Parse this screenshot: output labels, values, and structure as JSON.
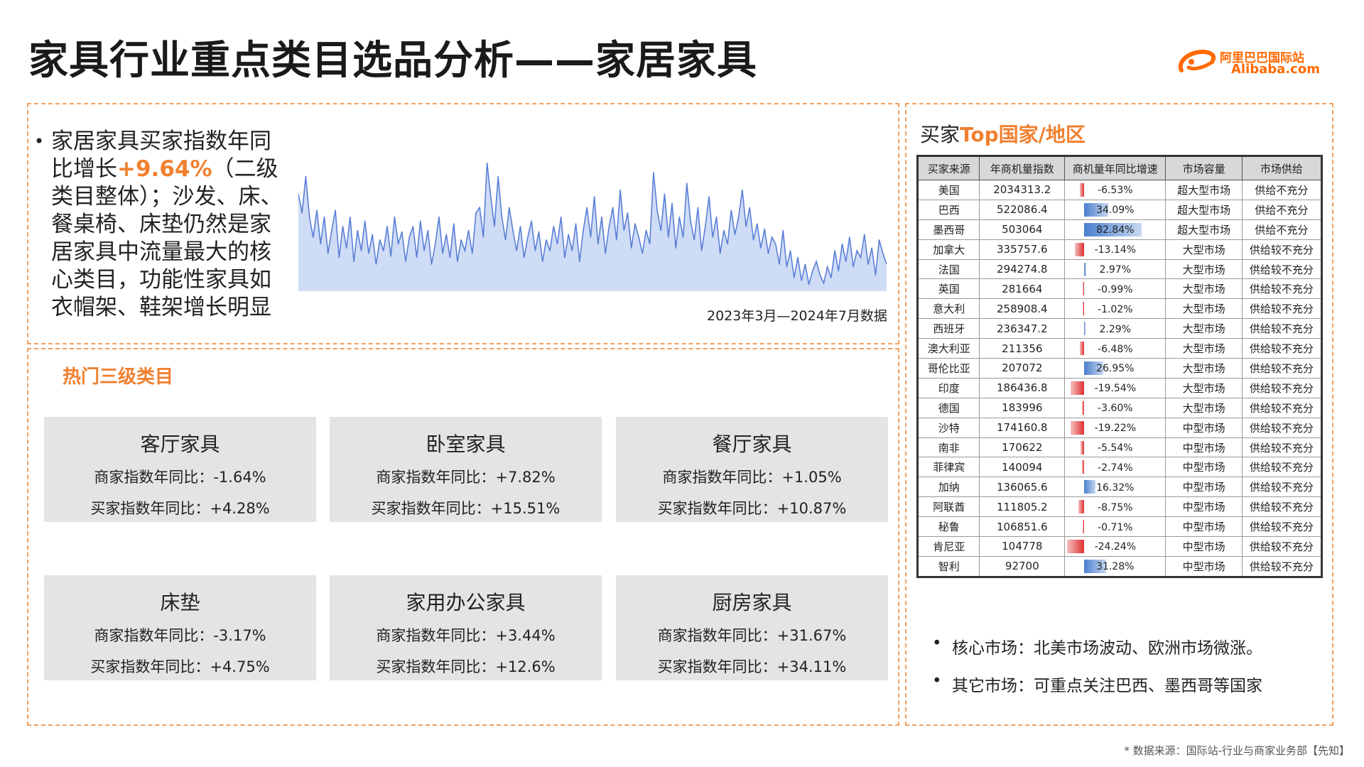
{
  "title": "家具行业重点类目选品分析——家居家具",
  "logo": {
    "cn": "阿里巴巴国际站",
    "en": "Alibaba.com",
    "color": "#ff6a00"
  },
  "trend": {
    "bullet": "•",
    "text_before": "家居家具买家指数年同比增长",
    "highlight": "+9.64%",
    "text_after": "（二级类目整体）；沙发、床、餐桌椅、床垫仍然是家居家具中流量最大的核心类目，功能性家具如衣帽架、鞋架增长明显",
    "caption": "2023年3月—2024年7月数据"
  },
  "chart_data": {
    "type": "area",
    "title": "",
    "xlabel": "",
    "ylabel": "",
    "grid": false,
    "fill_color": "#cfdcf6",
    "line_color": "#5b7fd6",
    "ylim": [
      0,
      100
    ],
    "values": [
      72,
      58,
      85,
      55,
      40,
      60,
      35,
      55,
      28,
      45,
      60,
      25,
      48,
      32,
      55,
      22,
      45,
      30,
      52,
      28,
      42,
      20,
      38,
      30,
      48,
      26,
      55,
      35,
      44,
      22,
      40,
      48,
      25,
      52,
      30,
      45,
      20,
      35,
      55,
      28,
      42,
      25,
      50,
      22,
      38,
      30,
      45,
      28,
      58,
      62,
      40,
      95,
      70,
      48,
      85,
      55,
      38,
      62,
      45,
      30,
      48,
      25,
      40,
      52,
      30,
      44,
      22,
      38,
      30,
      48,
      35,
      55,
      25,
      42,
      30,
      50,
      22,
      45,
      62,
      40,
      70,
      35,
      55,
      28,
      48,
      62,
      38,
      75,
      45,
      58,
      32,
      50,
      40,
      28,
      45,
      35,
      88,
      60,
      45,
      72,
      40,
      65,
      32,
      55,
      40,
      80,
      52,
      38,
      62,
      30,
      48,
      70,
      40,
      55,
      28,
      45,
      35,
      60,
      42,
      55,
      75,
      48,
      62,
      38,
      50,
      32,
      46,
      28,
      40,
      35,
      20,
      45,
      18,
      30,
      10,
      25,
      8,
      20,
      5,
      15,
      22,
      12,
      6,
      18,
      10,
      30,
      15,
      35,
      22,
      40,
      18,
      30,
      25,
      42,
      20,
      32,
      12,
      38,
      28,
      20
    ]
  },
  "hot": {
    "title": "热门三级类目",
    "cards": [
      {
        "name": "客厅家具",
        "merchant": "商家指数年同比：-1.64%",
        "buyer": "买家指数年同比：+4.28%"
      },
      {
        "name": "卧室家具",
        "merchant": "商家指数年同比：+7.82%",
        "buyer": "买家指数年同比：+15.51%"
      },
      {
        "name": "餐厅家具",
        "merchant": "商家指数年同比：+1.05%",
        "buyer": "买家指数年同比：+10.87%"
      },
      {
        "name": "床垫",
        "merchant": "商家指数年同比：-3.17%",
        "buyer": "买家指数年同比：+4.75%"
      },
      {
        "name": "家用办公家具",
        "merchant": "商家指数年同比：+3.44%",
        "buyer": "买家指数年同比：+12.6%"
      },
      {
        "name": "厨房家具",
        "merchant": "商家指数年同比：+31.67%",
        "buyer": "买家指数年同比：+34.11%"
      }
    ]
  },
  "countries": {
    "title_prefix": "买家",
    "title_highlight": "Top国家/地区",
    "headers": [
      "买家来源",
      "年商机量指数",
      "商机量年同比增速",
      "市场容量",
      "市场供给"
    ],
    "pos_color": "#4a7fd0",
    "neg_color": "#e03030",
    "rows": [
      {
        "country": "美国",
        "index": "2034313.2",
        "growth": "-6.53%",
        "growth_value": -6.53,
        "capacity": "超大型市场",
        "supply": "供给不充分"
      },
      {
        "country": "巴西",
        "index": "522086.4",
        "growth": "34.09%",
        "growth_value": 34.09,
        "capacity": "超大型市场",
        "supply": "供给不充分"
      },
      {
        "country": "墨西哥",
        "index": "503064",
        "growth": "82.84%",
        "growth_value": 82.84,
        "capacity": "超大型市场",
        "supply": "供给不充分"
      },
      {
        "country": "加拿大",
        "index": "335757.6",
        "growth": "-13.14%",
        "growth_value": -13.14,
        "capacity": "大型市场",
        "supply": "供给较不充分"
      },
      {
        "country": "法国",
        "index": "294274.8",
        "growth": "2.97%",
        "growth_value": 2.97,
        "capacity": "大型市场",
        "supply": "供给较不充分"
      },
      {
        "country": "英国",
        "index": "281664",
        "growth": "-0.99%",
        "growth_value": -0.99,
        "capacity": "大型市场",
        "supply": "供给较不充分"
      },
      {
        "country": "意大利",
        "index": "258908.4",
        "growth": "-1.02%",
        "growth_value": -1.02,
        "capacity": "大型市场",
        "supply": "供给较不充分"
      },
      {
        "country": "西班牙",
        "index": "236347.2",
        "growth": "2.29%",
        "growth_value": 2.29,
        "capacity": "大型市场",
        "supply": "供给较不充分"
      },
      {
        "country": "澳大利亚",
        "index": "211356",
        "growth": "-6.48%",
        "growth_value": -6.48,
        "capacity": "大型市场",
        "supply": "供给较不充分"
      },
      {
        "country": "哥伦比亚",
        "index": "207072",
        "growth": "26.95%",
        "growth_value": 26.95,
        "capacity": "大型市场",
        "supply": "供给较不充分"
      },
      {
        "country": "印度",
        "index": "186436.8",
        "growth": "-19.54%",
        "growth_value": -19.54,
        "capacity": "大型市场",
        "supply": "供给较不充分"
      },
      {
        "country": "德国",
        "index": "183996",
        "growth": "-3.60%",
        "growth_value": -3.6,
        "capacity": "大型市场",
        "supply": "供给较不充分"
      },
      {
        "country": "沙特",
        "index": "174160.8",
        "growth": "-19.22%",
        "growth_value": -19.22,
        "capacity": "中型市场",
        "supply": "供给较不充分"
      },
      {
        "country": "南非",
        "index": "170622",
        "growth": "-5.54%",
        "growth_value": -5.54,
        "capacity": "中型市场",
        "supply": "供给较不充分"
      },
      {
        "country": "菲律宾",
        "index": "140094",
        "growth": "-2.74%",
        "growth_value": -2.74,
        "capacity": "中型市场",
        "supply": "供给较不充分"
      },
      {
        "country": "加纳",
        "index": "136065.6",
        "growth": "16.32%",
        "growth_value": 16.32,
        "capacity": "中型市场",
        "supply": "供给较不充分"
      },
      {
        "country": "阿联酋",
        "index": "111805.2",
        "growth": "-8.75%",
        "growth_value": -8.75,
        "capacity": "中型市场",
        "supply": "供给较不充分"
      },
      {
        "country": "秘鲁",
        "index": "106851.6",
        "growth": "-0.71%",
        "growth_value": -0.71,
        "capacity": "中型市场",
        "supply": "供给较不充分"
      },
      {
        "country": "肯尼亚",
        "index": "104778",
        "growth": "-24.24%",
        "growth_value": -24.24,
        "capacity": "中型市场",
        "supply": "供给较不充分"
      },
      {
        "country": "智利",
        "index": "92700",
        "growth": "31.28%",
        "growth_value": 31.28,
        "capacity": "中型市场",
        "supply": "供给较不充分"
      }
    ]
  },
  "notes": [
    "核心市场：北美市场波动、欧洲市场微涨。",
    "其它市场：可重点关注巴西、墨西哥等国家"
  ],
  "source": "* 数据来源：国际站-行业与商家业务部【先知】"
}
